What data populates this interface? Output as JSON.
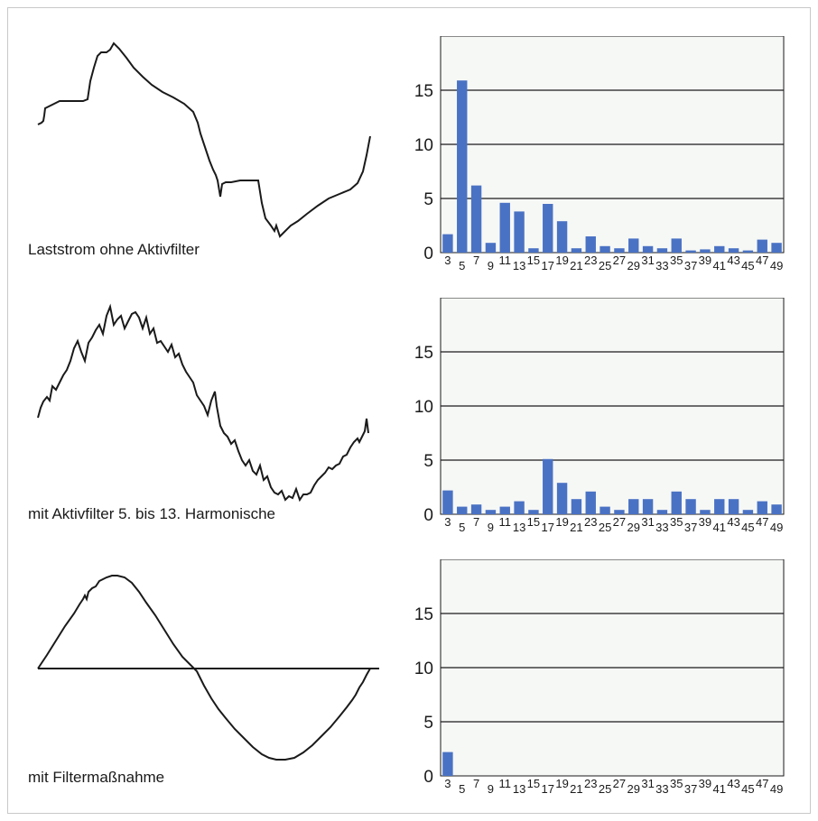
{
  "panels": [
    {
      "caption": "Laststrom ohne Aktivfilter",
      "waveform": "distorted-current"
    },
    {
      "caption": "mit Aktivfilter 5. bis 13. Harmonische",
      "waveform": "noisy-sine-current"
    },
    {
      "caption": "mit Filtermaßnahme",
      "waveform": "clean-sine-current"
    }
  ],
  "chart_data": [
    {
      "type": "bar",
      "categories": [
        "3",
        "5",
        "7",
        "9",
        "11",
        "13",
        "15",
        "17",
        "19",
        "21",
        "23",
        "25",
        "27",
        "29",
        "31",
        "33",
        "35",
        "37",
        "39",
        "41",
        "43",
        "45",
        "47",
        "49"
      ],
      "values": [
        1.7,
        15.9,
        6.2,
        0.9,
        4.6,
        3.8,
        0.4,
        4.5,
        2.9,
        0.4,
        1.5,
        0.6,
        0.4,
        1.3,
        0.6,
        0.4,
        1.3,
        0.2,
        0.3,
        0.6,
        0.4,
        0.2,
        1.2,
        0.9
      ],
      "yticks": [
        0,
        5,
        10,
        15
      ],
      "ylim": [
        0,
        20
      ],
      "grid": true,
      "bar_color": "#4a72c4",
      "plot_background": "#f6f8f6"
    },
    {
      "type": "bar",
      "categories": [
        "3",
        "5",
        "7",
        "9",
        "11",
        "13",
        "15",
        "17",
        "19",
        "21",
        "23",
        "25",
        "27",
        "29",
        "31",
        "33",
        "35",
        "37",
        "39",
        "41",
        "43",
        "45",
        "47",
        "49"
      ],
      "values": [
        2.2,
        0.7,
        0.9,
        0.4,
        0.7,
        1.2,
        0.4,
        5.1,
        2.9,
        1.4,
        2.1,
        0.7,
        0.4,
        1.4,
        1.4,
        0.4,
        2.1,
        1.4,
        0.4,
        1.4,
        1.4,
        0.4,
        1.2,
        0.9
      ],
      "yticks": [
        0,
        5,
        10,
        15
      ],
      "ylim": [
        0,
        20
      ],
      "grid": true,
      "bar_color": "#4a72c4",
      "plot_background": "#f6f8f6"
    },
    {
      "type": "bar",
      "categories": [
        "3",
        "5",
        "7",
        "9",
        "11",
        "13",
        "15",
        "17",
        "19",
        "21",
        "23",
        "25",
        "27",
        "29",
        "31",
        "33",
        "35",
        "37",
        "39",
        "41",
        "43",
        "45",
        "47",
        "49"
      ],
      "values": [
        2.2,
        0,
        0,
        0,
        0,
        0,
        0,
        0,
        0,
        0,
        0,
        0,
        0,
        0,
        0,
        0,
        0,
        0,
        0,
        0,
        0,
        0,
        0,
        0
      ],
      "yticks": [
        0,
        5,
        10,
        15
      ],
      "ylim": [
        0,
        20
      ],
      "grid": true,
      "bar_color": "#4a72c4",
      "plot_background": "#f6f8f6"
    }
  ]
}
